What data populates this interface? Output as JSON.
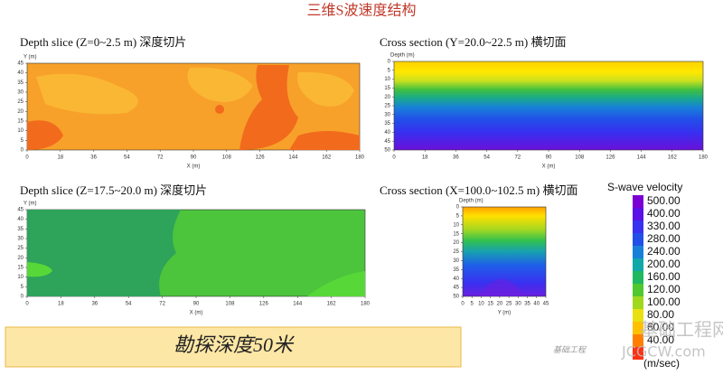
{
  "title": "三维S波速度结构",
  "panels": [
    {
      "title": "Depth slice (Z=0~2.5 m) 深度切片",
      "xlabel": "X (m)",
      "ylabel": "Y (m)",
      "xticks": [
        "0",
        "18",
        "36",
        "54",
        "72",
        "90",
        "108",
        "126",
        "144",
        "162",
        "180"
      ],
      "yticks": [
        "45",
        "40",
        "35",
        "30",
        "25",
        "20",
        "15",
        "10",
        "5",
        "0"
      ]
    },
    {
      "title": "Cross section (Y=20.0~22.5 m) 横切面",
      "xlabel": "X (m)",
      "ylabel": "Depth (m)",
      "xticks": [
        "0",
        "18",
        "36",
        "54",
        "72",
        "90",
        "108",
        "126",
        "144",
        "162",
        "180"
      ],
      "yticks": [
        "0",
        "5",
        "10",
        "15",
        "20",
        "25",
        "30",
        "35",
        "40",
        "45",
        "50"
      ]
    },
    {
      "title": "Depth slice (Z=17.5~20.0 m) 深度切片",
      "xlabel": "X (m)",
      "ylabel": "Y (m)",
      "xticks": [
        "0",
        "18",
        "36",
        "54",
        "72",
        "90",
        "108",
        "126",
        "144",
        "162",
        "180"
      ],
      "yticks": [
        "45",
        "40",
        "35",
        "30",
        "25",
        "20",
        "15",
        "10",
        "5",
        "0"
      ]
    },
    {
      "title": "Cross section (X=100.0~102.5 m) 横切面",
      "xlabel": "Y (m)",
      "ylabel": "Depth (m)",
      "xticks": [
        "0",
        "5",
        "10",
        "15",
        "20",
        "25",
        "30",
        "35",
        "40",
        "45"
      ],
      "yticks": [
        "0",
        "5",
        "10",
        "15",
        "20",
        "25",
        "30",
        "35",
        "40",
        "45",
        "50"
      ]
    }
  ],
  "colorbar": {
    "title": "S-wave velocity",
    "unit": "(m/sec)",
    "labels": [
      "500.00",
      "400.00",
      "330.00",
      "280.00",
      "240.00",
      "200.00",
      "160.00",
      "120.00",
      "100.00",
      "80.00",
      "60.00",
      "40.00"
    ]
  },
  "banner": "勘探深度50米",
  "watermark": {
    "name": "基础工程网",
    "url": "JCGCW.com",
    "small": "基础工程"
  }
}
